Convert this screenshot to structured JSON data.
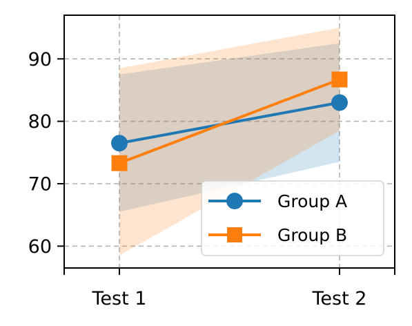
{
  "chart_data": {
    "type": "line",
    "categories": [
      "Test 1",
      "Test 2"
    ],
    "ylim": [
      56.5,
      97
    ],
    "yticks": [
      60,
      70,
      80,
      90
    ],
    "grid": true,
    "legend_position": "lower-right",
    "series": [
      {
        "name": "Group A",
        "values": [
          76.5,
          83.0
        ],
        "band_low": [
          65.5,
          73.5
        ],
        "band_high": [
          87.5,
          92.5
        ],
        "color": "#1f77b4",
        "band_color": "#1f77b4",
        "marker": "circle"
      },
      {
        "name": "Group B",
        "values": [
          73.3,
          86.7
        ],
        "band_low": [
          58.5,
          78.5
        ],
        "band_high": [
          88.5,
          95.0
        ],
        "color": "#ff7f0e",
        "band_color": "#ff7f0e",
        "marker": "square"
      }
    ]
  }
}
